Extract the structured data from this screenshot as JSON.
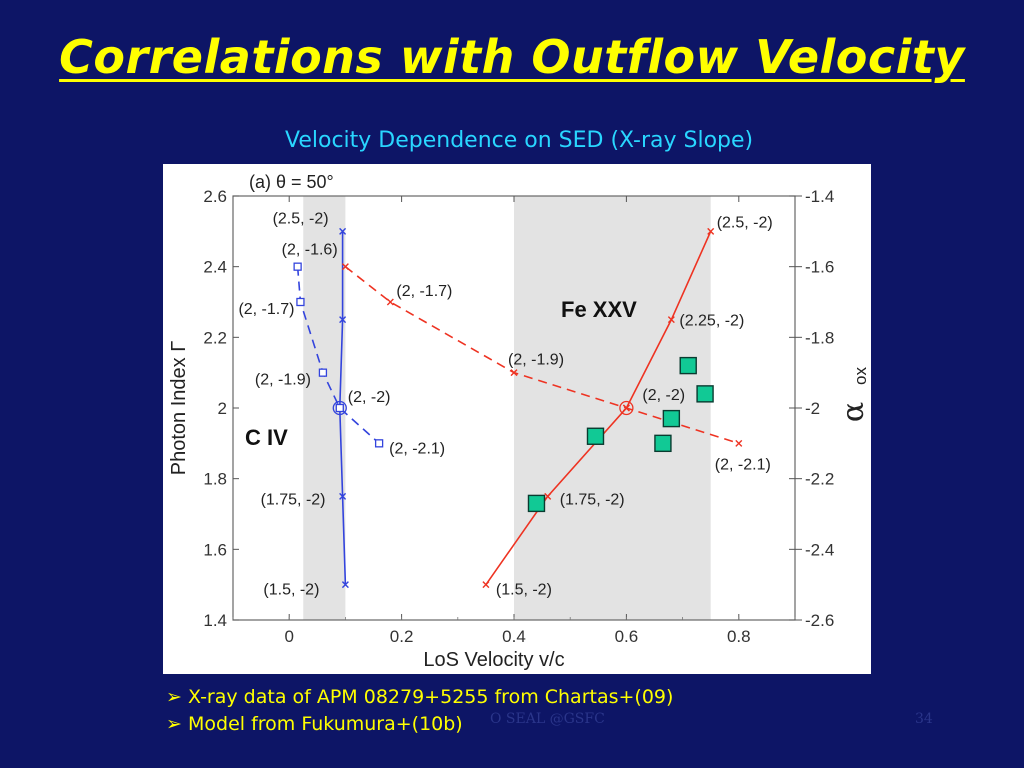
{
  "slide": {
    "title": "Correlations with Outflow Velocity",
    "subtitle": "Velocity Dependence on SED (X-ray Slope)",
    "bullet_marker": "➢",
    "bullets": [
      "X-ray data of APM 08279+5255 from Chartas+(09)",
      "Model from Fukumura+(10b)"
    ],
    "footer_center": "O SEAL @GSFC",
    "footer_right": "34",
    "colors": {
      "background": "#0d1566",
      "title": "#ffff00",
      "subtitle": "#29d6ff"
    }
  },
  "chart_data": {
    "type": "line",
    "panel_label": "(a) θ = 50°",
    "xlabel": "LoS Velocity  v/c",
    "ylabel": "Photon Index  Γ",
    "y2label": "α",
    "y2label_sub": "ox",
    "xlim": [
      -0.1,
      0.9
    ],
    "ylim": [
      1.4,
      2.6
    ],
    "y2lim": [
      -2.6,
      -1.4
    ],
    "x_ticks": [
      "0",
      "0.2",
      "0.4",
      "0.6",
      "0.8"
    ],
    "x_tick_values": [
      0,
      0.2,
      0.4,
      0.6,
      0.8
    ],
    "y_ticks": [
      "1.4",
      "1.6",
      "1.8",
      "2",
      "2.2",
      "2.4",
      "2.6"
    ],
    "y_tick_values": [
      1.4,
      1.6,
      1.8,
      2.0,
      2.2,
      2.4,
      2.6
    ],
    "y2_ticks": [
      "-1.4",
      "-1.6",
      "-1.8",
      "-2",
      "-2.2",
      "-2.4",
      "-2.6"
    ],
    "y2_tick_values": [
      -1.4,
      -1.6,
      -1.8,
      -2.0,
      -2.2,
      -2.4,
      -2.6
    ],
    "shaded_regions": [
      {
        "x0": 0.025,
        "x1": 0.1,
        "label": "C IV"
      },
      {
        "x0": 0.4,
        "x1": 0.75,
        "label": "Fe XXV"
      }
    ],
    "series": [
      {
        "color": "#3344dd",
        "style": "solid",
        "marker": "x",
        "x": [
          0.1,
          0.095,
          0.09,
          0.095,
          0.095
        ],
        "y": [
          1.5,
          1.75,
          2.0,
          2.25,
          2.5
        ],
        "labels": [
          "(1.5, -2)",
          "(1.75, -2)",
          "(2, -2)",
          "(2.25, -2)",
          "(2.5, -2)"
        ],
        "show_labels": [
          true,
          true,
          true,
          false,
          true
        ]
      },
      {
        "color": "#3344dd",
        "style": "dashed",
        "marker": "square",
        "x": [
          0.015,
          0.02,
          0.06,
          0.09,
          0.16
        ],
        "y": [
          2.4,
          2.3,
          2.1,
          2.0,
          1.9
        ],
        "labels": [
          "(2, -1.6)",
          "(2, -1.7)",
          "(2, -1.9)",
          "(2, -2)",
          "(2, -2.1)"
        ],
        "show_labels": [
          true,
          true,
          true,
          false,
          true
        ]
      },
      {
        "color": "#ee3322",
        "style": "solid",
        "marker": "x",
        "x": [
          0.35,
          0.46,
          0.6,
          0.68,
          0.75
        ],
        "y": [
          1.5,
          1.75,
          2.0,
          2.25,
          2.5
        ],
        "labels": [
          "(1.5, -2)",
          "(1.75, -2)",
          "(2, -2)",
          "(2.25, -2)",
          "(2.5, -2)"
        ],
        "show_labels": [
          true,
          true,
          true,
          true,
          true
        ]
      },
      {
        "color": "#ee3322",
        "style": "dashed",
        "marker": "x",
        "x": [
          0.1,
          0.18,
          0.4,
          0.6,
          0.8
        ],
        "y": [
          2.4,
          2.3,
          2.1,
          2.0,
          1.9
        ],
        "labels": [
          "(2, -1.6)",
          "(2, -1.7)",
          "(2, -1.9)",
          "(2, -2)",
          "(2, -2.1)"
        ],
        "show_labels": [
          false,
          true,
          true,
          false,
          true
        ]
      },
      {
        "color": "#11c995",
        "style": "none",
        "marker": "big-square",
        "x": [
          0.44,
          0.545,
          0.665,
          0.68,
          0.71,
          0.74
        ],
        "y": [
          1.73,
          1.92,
          1.9,
          1.97,
          2.12,
          2.04
        ]
      }
    ],
    "highlight_points": [
      {
        "x": 0.09,
        "y": 2.0,
        "color": "#3344dd"
      },
      {
        "x": 0.6,
        "y": 2.0,
        "color": "#ee3322"
      }
    ]
  }
}
